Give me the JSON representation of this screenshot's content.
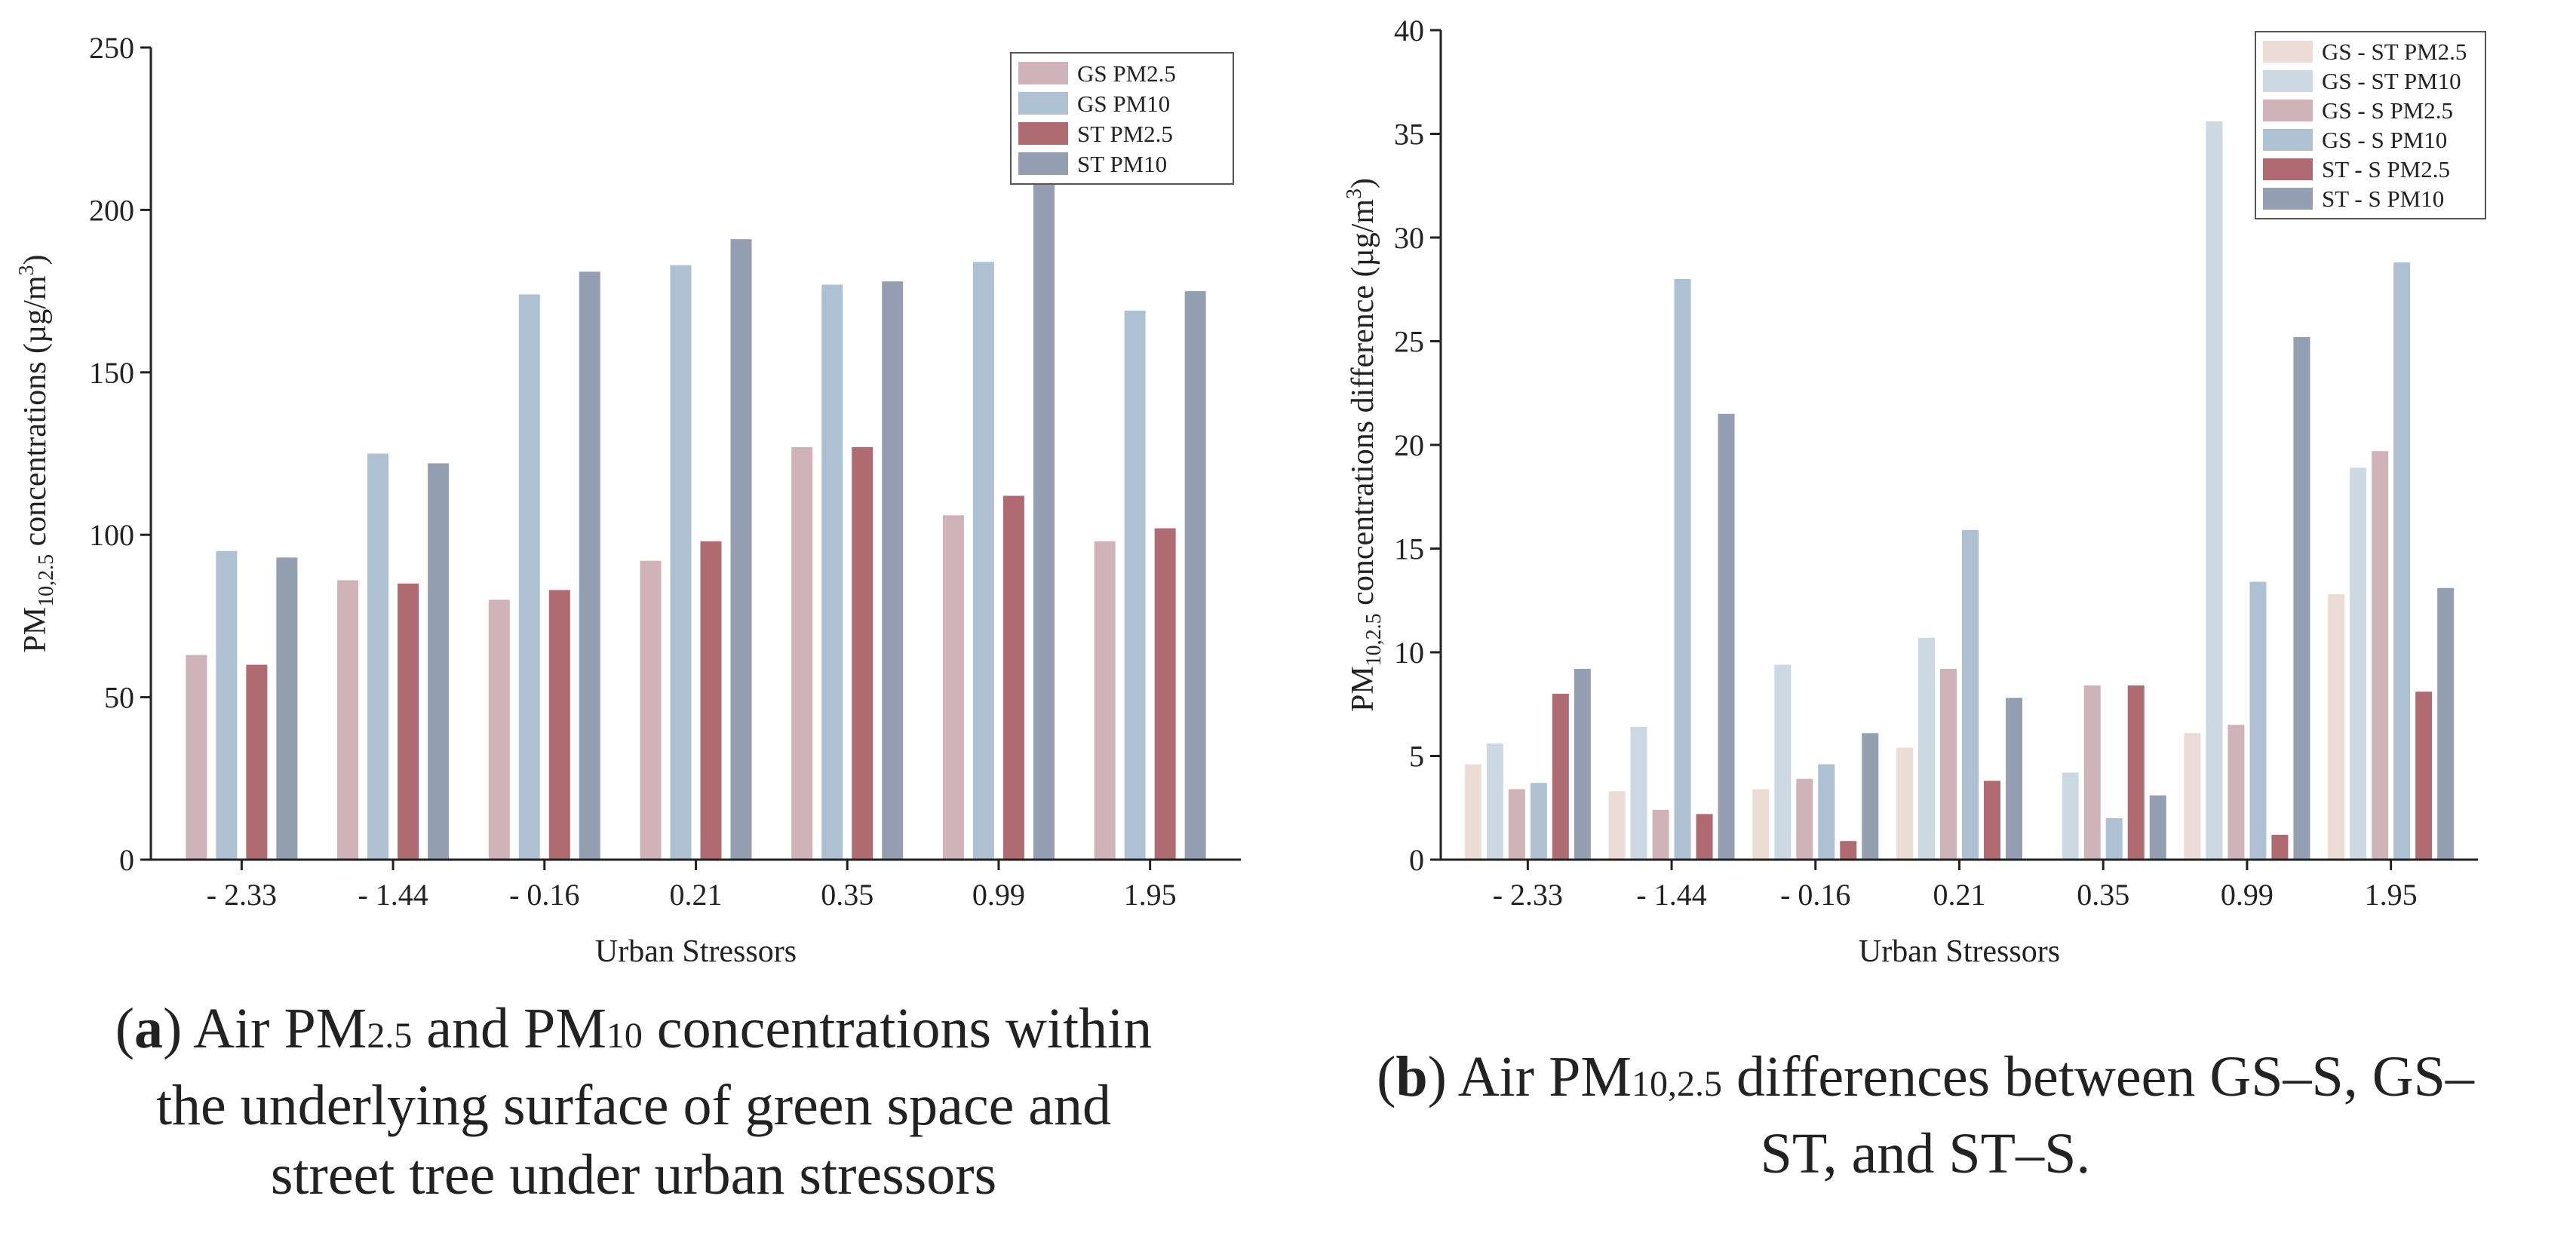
{
  "chart_data": [
    {
      "type": "bar",
      "panel": "a",
      "title": "",
      "xlabel": "Urban Stressors",
      "ylabel": "PM10,2.5 concentrations (µg/m3)",
      "ylabel_parts": {
        "base": "PM",
        "sub": "10,2.5",
        "text": " concentrations (µg/m",
        "sup": "3",
        "end": ")"
      },
      "categories": [
        "- 2.33",
        "- 1.44",
        "- 0.16",
        "0.21",
        "0.35",
        "0.99",
        "1.95"
      ],
      "ylim": [
        0,
        250
      ],
      "yticks": [
        0,
        50,
        100,
        150,
        200,
        250
      ],
      "grid": false,
      "legend_position": "top-right",
      "series": [
        {
          "name": "GS PM2.5",
          "color": "#d0b3b8",
          "values": [
            63,
            86,
            80,
            92,
            127,
            106,
            98
          ]
        },
        {
          "name": "GS PM10",
          "color": "#aec1d3",
          "values": [
            95,
            125,
            174,
            183,
            177,
            184,
            169
          ]
        },
        {
          "name": "ST PM2.5",
          "color": "#b06b72",
          "values": [
            60,
            85,
            83,
            98,
            127,
            112,
            102
          ]
        },
        {
          "name": "ST PM10",
          "color": "#949fb2",
          "values": [
            93,
            122,
            181,
            191,
            178,
            220,
            175
          ]
        }
      ]
    },
    {
      "type": "bar",
      "panel": "b",
      "title": "",
      "xlabel": "Urban Stressors",
      "ylabel": "PM10,2.5 concentrations difference (µg/m3)",
      "ylabel_parts": {
        "base": "PM",
        "sub": "10,2.5",
        "text": " concentrations difference (µg/m",
        "sup": "3",
        "end": ")"
      },
      "categories": [
        "- 2.33",
        "- 1.44",
        "- 0.16",
        "0.21",
        "0.35",
        "0.99",
        "1.95"
      ],
      "ylim": [
        0,
        40
      ],
      "yticks": [
        0,
        5,
        10,
        15,
        20,
        25,
        30,
        35,
        40
      ],
      "grid": false,
      "legend_position": "top-right",
      "series": [
        {
          "name": "GS - ST PM2.5",
          "color": "#ecdcd6",
          "values": [
            4.6,
            3.3,
            3.4,
            5.4,
            0,
            6.1,
            12.8
          ]
        },
        {
          "name": "GS - ST PM10",
          "color": "#cdd9e2",
          "values": [
            5.6,
            6.4,
            9.4,
            10.7,
            4.2,
            35.6,
            18.9
          ]
        },
        {
          "name": "GS - S PM2.5",
          "color": "#d0b3b8",
          "values": [
            3.4,
            2.4,
            3.9,
            9.2,
            8.4,
            6.5,
            19.7
          ]
        },
        {
          "name": "GS - S PM10",
          "color": "#aec1d3",
          "values": [
            3.7,
            28.0,
            4.6,
            15.9,
            2.0,
            13.4,
            28.8
          ]
        },
        {
          "name": "ST - S PM2.5",
          "color": "#b06b72",
          "values": [
            8.0,
            2.2,
            0.9,
            3.8,
            8.4,
            1.2,
            8.1
          ]
        },
        {
          "name": "ST - S PM10",
          "color": "#949fb2",
          "values": [
            9.2,
            21.5,
            6.1,
            7.8,
            3.1,
            25.2,
            13.1
          ]
        }
      ]
    }
  ],
  "captions": {
    "a": {
      "label": "a",
      "t1": " Air PM",
      "s1": "2.5",
      "t2": " and PM",
      "s2": "10",
      "t3": " concentrations within",
      "line2": "the underlying surface of green space and",
      "line3": "street tree under urban stressors"
    },
    "b": {
      "label": "b",
      "t1": " Air PM",
      "s1": "10,2.5",
      "t2": " differences between GS–S, GS–",
      "line2": "ST, and ST–S."
    }
  }
}
